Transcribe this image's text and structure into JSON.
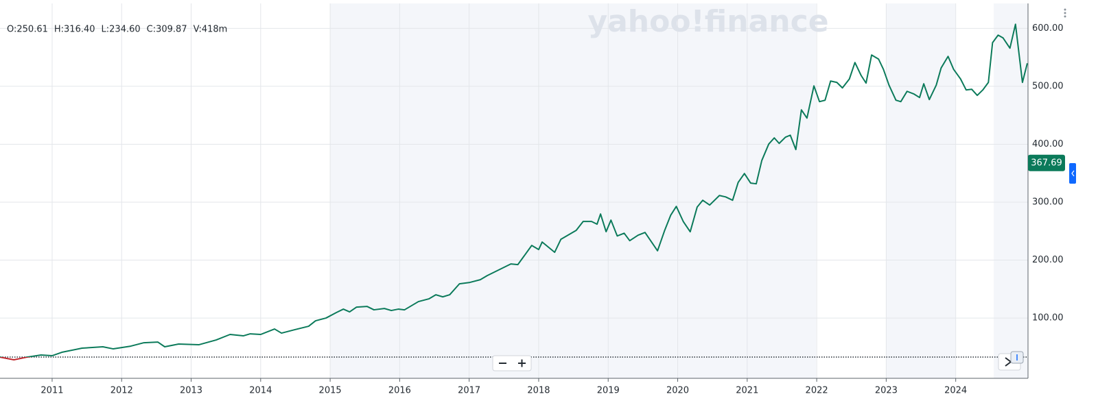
{
  "chart_data": {
    "type": "line",
    "watermark": "yahoo!finance",
    "legend_text": [
      "O:250.61",
      "H:316.40",
      "L:234.60",
      "C:309.87",
      "V:418m"
    ],
    "last_price": 367.69,
    "baseline": 32.6,
    "xlim": [
      2010.25,
      2025.04
    ],
    "xticks": [
      2011,
      2012,
      2013,
      2014,
      2015,
      2016,
      2017,
      2018,
      2019,
      2020,
      2021,
      2022,
      2023,
      2024
    ],
    "ylim": [
      -4,
      643
    ],
    "yticks": [
      {
        "value": 100,
        "label": "100.00"
      },
      {
        "value": 200,
        "label": "200.00"
      },
      {
        "value": 300,
        "label": "300.00"
      },
      {
        "value": 400,
        "label": "400.00"
      },
      {
        "value": 500,
        "label": "500.00"
      },
      {
        "value": 600,
        "label": "600.00"
      }
    ],
    "grid": true,
    "color": "#0b7a5a",
    "below_color": "#c0262d",
    "x": [
      2010.25,
      2010.45,
      2010.64,
      2010.84,
      2011.0,
      2011.14,
      2011.43,
      2011.73,
      2011.88,
      2012.13,
      2012.32,
      2012.52,
      2012.62,
      2012.82,
      2013.11,
      2013.36,
      2013.56,
      2013.75,
      2013.85,
      2014.0,
      2014.2,
      2014.3,
      2014.49,
      2014.69,
      2014.79,
      2014.94,
      2015.09,
      2015.19,
      2015.28,
      2015.38,
      2015.53,
      2015.63,
      2015.78,
      2015.88,
      2015.98,
      2016.07,
      2016.27,
      2016.42,
      2016.52,
      2016.62,
      2016.72,
      2016.86,
      2017.01,
      2017.16,
      2017.26,
      2017.46,
      2017.6,
      2017.7,
      2017.8,
      2017.9,
      2018.0,
      2018.05,
      2018.23,
      2018.32,
      2018.54,
      2018.64,
      2018.76,
      2018.84,
      2018.89,
      2018.97,
      2019.04,
      2019.13,
      2019.23,
      2019.31,
      2019.43,
      2019.53,
      2019.71,
      2019.81,
      2019.9,
      2019.98,
      2020.08,
      2020.18,
      2020.28,
      2020.36,
      2020.46,
      2020.6,
      2020.69,
      2020.79,
      2020.87,
      2020.96,
      2021.05,
      2021.13,
      2021.21,
      2021.31,
      2021.39,
      2021.46,
      2021.55,
      2021.62,
      2021.7,
      2021.78,
      2021.86,
      2021.96,
      2022.04,
      2022.12,
      2022.2,
      2022.29,
      2022.37,
      2022.47,
      2022.55,
      2022.64,
      2022.71,
      2022.79,
      2022.89,
      2022.96,
      2023.04,
      2023.14,
      2023.21,
      2023.3,
      2023.4,
      2023.48,
      2023.54,
      2023.62,
      2023.72,
      2023.79,
      2023.89,
      2023.97,
      2024.07,
      2024.15,
      2024.23,
      2024.31,
      2024.39,
      2024.47,
      2024.53,
      2024.61,
      2024.68,
      2024.78,
      2024.86,
      2024.96,
      2025.03
    ],
    "values": [
      32.6,
      27.9,
      32.6,
      36.2,
      35.0,
      40.9,
      48.0,
      50.4,
      46.8,
      51.5,
      57.4,
      58.6,
      50.4,
      55.1,
      53.9,
      62.2,
      71.7,
      69.3,
      72.8,
      71.7,
      81.1,
      74.0,
      79.9,
      85.8,
      95.3,
      100.0,
      109.5,
      115.4,
      110.6,
      118.9,
      120.1,
      114.2,
      116.5,
      113.0,
      115.4,
      114.2,
      128.4,
      133.1,
      140.2,
      136.6,
      140.2,
      159.1,
      161.5,
      166.2,
      173.3,
      185.1,
      193.4,
      192.2,
      208.7,
      225.3,
      218.2,
      231.2,
      213.5,
      236.0,
      251.3,
      266.7,
      266.7,
      262.0,
      279.6,
      249.0,
      269.0,
      241.7,
      246.4,
      233.5,
      243.0,
      247.7,
      216.1,
      250.4,
      277.6,
      292.7,
      266.7,
      248.9,
      291.5,
      303.3,
      295.0,
      311.5,
      309.1,
      303.3,
      334.1,
      349.4,
      332.9,
      331.7,
      371.9,
      400.3,
      410.9,
      401.4,
      412.1,
      415.6,
      390.8,
      459.3,
      445.1,
      500.7,
      473.5,
      475.9,
      509.0,
      506.7,
      497.2,
      512.6,
      541.0,
      518.5,
      505.5,
      554.0,
      546.9,
      529.2,
      502.0,
      476.0,
      473.5,
      491.3,
      486.6,
      480.6,
      504.3,
      477.1,
      502.0,
      531.6,
      551.6,
      529.2,
      512.6,
      493.7,
      494.9,
      484.3,
      493.7,
      506.7,
      575.3,
      588.3,
      583.6,
      565.8,
      607.1,
      506.7,
      539.8
    ]
  }
}
